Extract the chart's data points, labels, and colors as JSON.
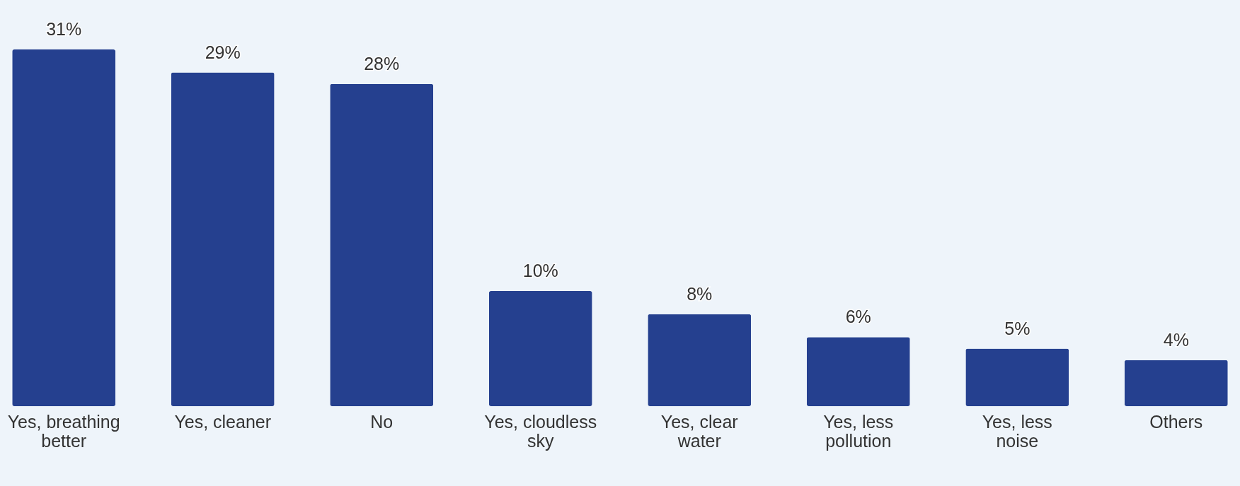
{
  "chart_data": {
    "type": "bar",
    "categories": [
      "Yes, breathing better",
      "Yes, cleaner",
      "No",
      "Yes, cloudless sky",
      "Yes, clear water",
      "Yes, less pollution",
      "Yes, less noise",
      "Others"
    ],
    "values": [
      31,
      29,
      28,
      10,
      8,
      6,
      5,
      4
    ],
    "color": "#25408f",
    "value_labels": [
      "31%",
      "29%",
      "28%",
      "10%",
      "8%",
      "6%",
      "5%",
      "4%"
    ],
    "grid": false
  }
}
